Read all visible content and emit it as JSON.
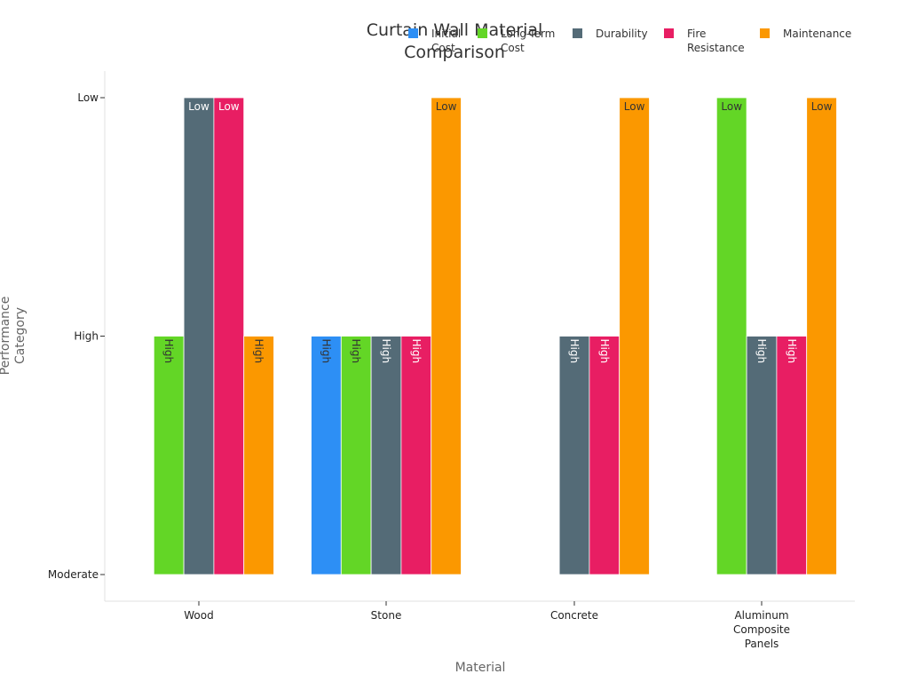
{
  "chart_data": {
    "type": "bar",
    "title_lines": [
      "Curtain Wall Material",
      "Comparison"
    ],
    "xlabel": "Material",
    "ylabel_lines": [
      "Performance",
      "Category"
    ],
    "categories": [
      [
        "Wood"
      ],
      [
        "Stone"
      ],
      [
        "Concrete"
      ],
      [
        "Aluminum",
        "Composite",
        "Panels"
      ]
    ],
    "y_categories": [
      "Moderate",
      "High",
      "Low"
    ],
    "y_range": [
      0,
      2
    ],
    "grid": false,
    "legend_position": "top-right",
    "series": [
      {
        "name_lines": [
          "Initial",
          "Cost"
        ],
        "color": "#2d8ff5",
        "label_color": "#333333",
        "values": [
          null,
          "High",
          null,
          null
        ]
      },
      {
        "name_lines": [
          "Long-Term",
          "Cost"
        ],
        "color": "#63d626",
        "label_color": "#333333",
        "values": [
          "High",
          "High",
          null,
          "Low"
        ]
      },
      {
        "name_lines": [
          "Durability"
        ],
        "color": "#546b77",
        "label_color": "#ffffff",
        "values": [
          "Low",
          "High",
          "High",
          "High"
        ]
      },
      {
        "name_lines": [
          "Fire",
          "Resistance"
        ],
        "color": "#e81e63",
        "label_color": "#ffffff",
        "values": [
          "Low",
          "High",
          "High",
          "High"
        ]
      },
      {
        "name_lines": [
          "Maintenance"
        ],
        "color": "#fb9800",
        "label_color": "#333333",
        "values": [
          "High",
          "Low",
          "Low",
          "Low"
        ]
      }
    ]
  }
}
